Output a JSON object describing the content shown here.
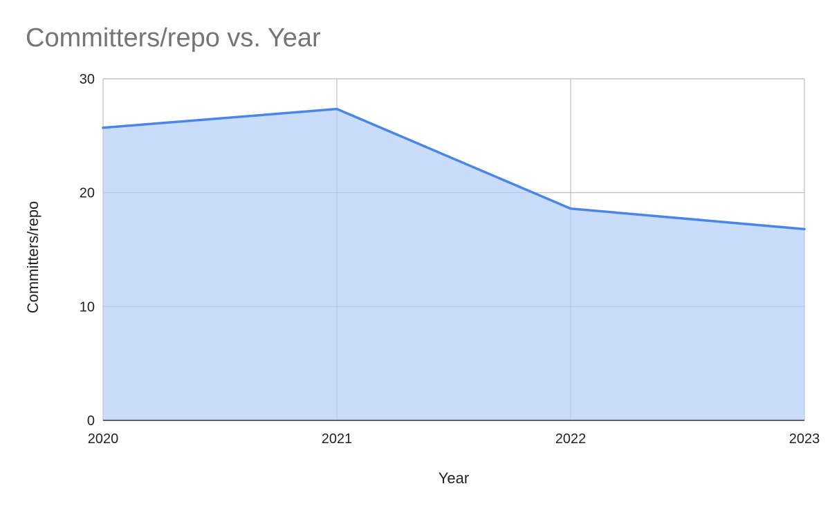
{
  "chart_data": {
    "type": "area",
    "title": "Committers/repo vs. Year",
    "xlabel": "Year",
    "ylabel": "Committers/repo",
    "x": [
      2020,
      2021,
      2022,
      2023
    ],
    "x_tick_labels": [
      "2020",
      "2021",
      "2022",
      "2023"
    ],
    "y_ticks": [
      0,
      10,
      20,
      30
    ],
    "y_tick_labels": [
      "0",
      "10",
      "20",
      "30"
    ],
    "ylim": [
      0,
      30
    ],
    "xlim": [
      2020,
      2023
    ],
    "grid": true,
    "legend": "none",
    "series": [
      {
        "values": [
          25.7,
          27.35,
          18.6,
          16.8
        ],
        "line_color": "#4a86e8",
        "fill_color": "#c6dafa"
      }
    ]
  }
}
